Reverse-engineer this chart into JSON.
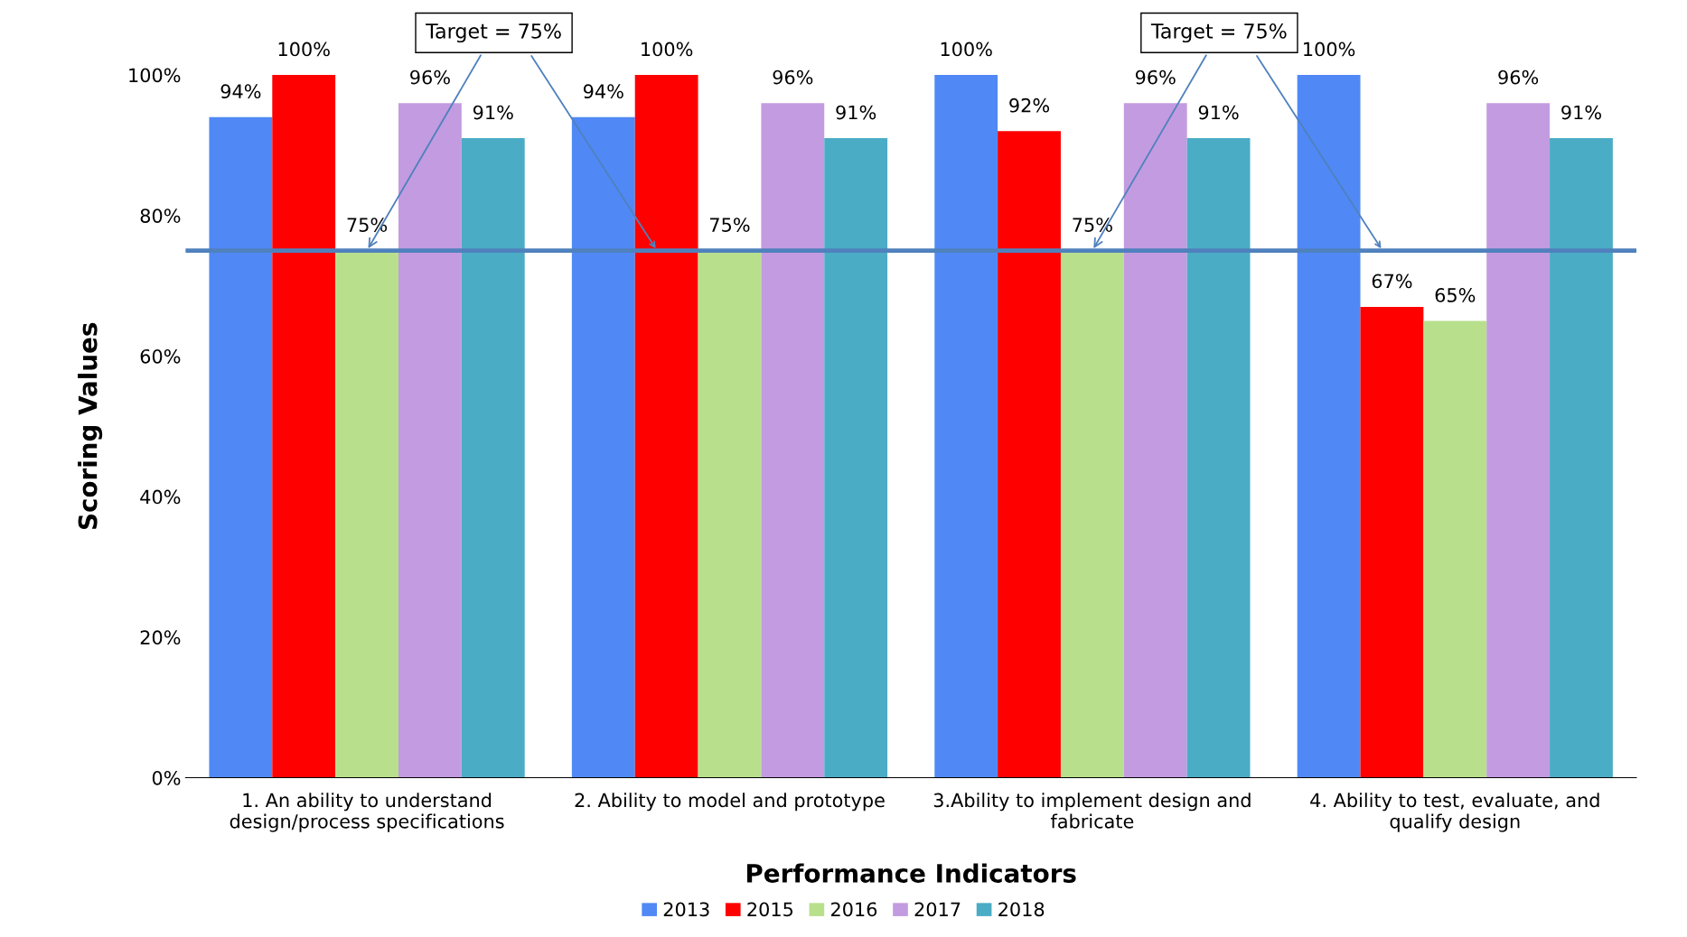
{
  "chart_data": {
    "type": "bar",
    "xlabel": "Performance Indicators",
    "ylabel": "Scoring Values",
    "categories": [
      "1. An ability to understand\ndesign/process specifications",
      "2. Ability to model and prototype",
      "3.Ability to implement design and\nfabricate",
      "4. Ability to test, evaluate, and\nqualify design"
    ],
    "series": [
      {
        "name": "2013",
        "color": "#5089f5",
        "values": [
          94,
          94,
          100,
          100
        ],
        "value_labels": [
          "94%",
          "94%",
          "100%",
          "100%"
        ]
      },
      {
        "name": "2015",
        "color": "#ff0000",
        "values": [
          100,
          100,
          92,
          67
        ],
        "value_labels": [
          "100%",
          "100%",
          "92%",
          "67%"
        ]
      },
      {
        "name": "2016",
        "color": "#b8e08c",
        "values": [
          75,
          75,
          75,
          65
        ],
        "value_labels": [
          "75%",
          "75%",
          "75%",
          "65%"
        ]
      },
      {
        "name": "2017",
        "color": "#c39be0",
        "values": [
          96,
          96,
          96,
          96
        ],
        "value_labels": [
          "96%",
          "96%",
          "96%",
          "96%"
        ]
      },
      {
        "name": "2018",
        "color": "#4bacc6",
        "values": [
          91,
          91,
          91,
          91
        ],
        "value_labels": [
          "91%",
          "91%",
          "91%",
          "91%"
        ]
      }
    ],
    "ylim": [
      0,
      100
    ],
    "yticks": [
      {
        "value": 0,
        "label": "0%"
      },
      {
        "value": 20,
        "label": "20%"
      },
      {
        "value": 40,
        "label": "40%"
      },
      {
        "value": 60,
        "label": "60%"
      },
      {
        "value": 80,
        "label": "80%"
      },
      {
        "value": 100,
        "label": "100%"
      }
    ],
    "ref_lines": [
      {
        "axis": "y",
        "value": 75,
        "color": "#4f81bd",
        "line_style": "solid"
      }
    ],
    "annotations": [
      {
        "text": "Target = 75%",
        "x": "1. An ability to understand\ndesign/process specifications",
        "y": 75
      },
      {
        "text": "Target = 75%",
        "x": "3.Ability to implement design and\nfabricate",
        "y": 75
      }
    ],
    "legend": "bottom",
    "grid": false
  }
}
